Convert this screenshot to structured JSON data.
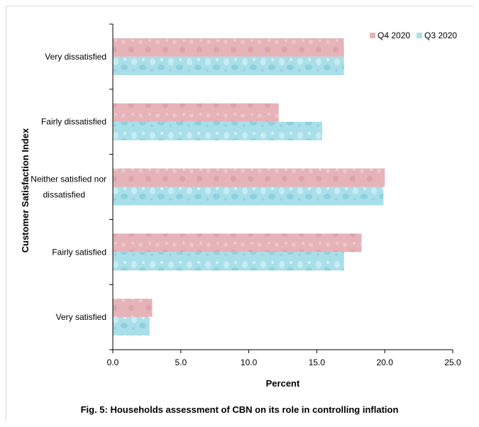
{
  "chart_data": {
    "type": "bar",
    "orientation": "horizontal",
    "categories": [
      "Very dissatisfied",
      "Fairly dissatisfied",
      "Neither satisfied nor dissatisfied",
      "Fairly satisfied",
      "Very satisfied"
    ],
    "series": [
      {
        "name": "Q4 2020",
        "values": [
          17.0,
          12.2,
          20.0,
          18.3,
          2.9
        ],
        "color": "#e6b3b8"
      },
      {
        "name": "Q3 2020",
        "values": [
          17.0,
          15.4,
          19.9,
          17.0,
          2.7
        ],
        "color": "#a9dfe9"
      }
    ],
    "xlabel": "Percent",
    "ylabel": "Customer  Satisfaction Index",
    "xlim": [
      0,
      25
    ],
    "xticks": [
      "0.0",
      "5.0",
      "10.0",
      "15.0",
      "20.0",
      "25.0"
    ],
    "legend_position": "top-right",
    "grid": false
  },
  "caption": "Fig. 5: Households  assessment  of  CBN  on its role in  controlling inflation"
}
